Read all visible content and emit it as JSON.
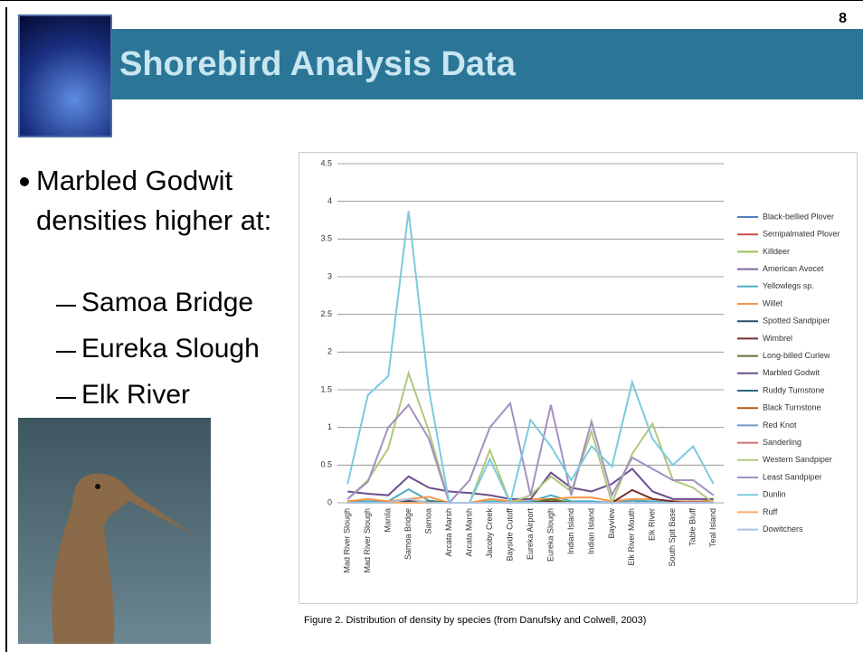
{
  "slide": {
    "page_number": "8",
    "title": "Shorebird Analysis Data",
    "bullet": "Marbled Godwit densities higher at:",
    "sub_bullets": [
      "Samoa Bridge",
      "Eureka Slough",
      "Elk River"
    ],
    "caption": "Figure 2. Distribution of density by species (from Danufsky and Colwell, 2003)"
  },
  "chart_data": {
    "type": "line",
    "categories": [
      "Mad River Slough",
      "Mad River Slough",
      "Manila",
      "Samoa Bridge",
      "Samoa",
      "Arcata Marsh",
      "Arcata Marsh",
      "Jacoby Creek",
      "Bayside Cutoff",
      "Eureka Airport",
      "Eureka Slough",
      "Indian Island",
      "Indian Island",
      "Bayview",
      "Elk River Mouth",
      "Elk River",
      "South Spit Base",
      "Table Bluff",
      "Teal Island"
    ],
    "ylim": [
      0,
      4.5
    ],
    "yticks": [
      0,
      0.5,
      1,
      1.5,
      2,
      2.5,
      3,
      3.5,
      4,
      4.5
    ],
    "grid": true,
    "legend": "right",
    "series": [
      {
        "name": "Black-bellied Plover",
        "color": "#4f81bd",
        "values": [
          0,
          0,
          0,
          0.05,
          0,
          0,
          0,
          0,
          0,
          0,
          0.02,
          0,
          0,
          0,
          0.03,
          0,
          0,
          0,
          0
        ]
      },
      {
        "name": "Semipalmated Plover",
        "color": "#c0504d",
        "values": [
          0,
          0.02,
          0,
          0.03,
          0,
          0,
          0,
          0,
          0,
          0,
          0,
          0,
          0,
          0,
          0,
          0,
          0,
          0,
          0
        ]
      },
      {
        "name": "Killdeer",
        "color": "#9bbb59",
        "values": [
          0,
          0,
          0,
          0,
          0,
          0,
          0,
          0,
          0,
          0,
          0,
          0,
          0,
          0,
          0,
          0,
          0,
          0,
          0.05
        ]
      },
      {
        "name": "American Avocet",
        "color": "#8064a2",
        "values": [
          0.02,
          0,
          0,
          0,
          0,
          0,
          0,
          0,
          0,
          0,
          0,
          0,
          0,
          0,
          0,
          0,
          0,
          0,
          0
        ]
      },
      {
        "name": "Yellowlegs sp.",
        "color": "#4bacc6",
        "values": [
          0.02,
          0.02,
          0.02,
          0.18,
          0.03,
          0,
          0,
          0.02,
          0,
          0.02,
          0.1,
          0.02,
          0.02,
          0,
          0.03,
          0.02,
          0,
          0,
          0
        ]
      },
      {
        "name": "Willet",
        "color": "#f79646",
        "values": [
          0.02,
          0.05,
          0.02,
          0.05,
          0.08,
          0,
          0,
          0.05,
          0.02,
          0.05,
          0.05,
          0.07,
          0.07,
          0.02,
          0.05,
          0.05,
          0.02,
          0.02,
          0.02
        ]
      },
      {
        "name": "Spotted Sandpiper",
        "color": "#2c4d75",
        "values": [
          0,
          0,
          0,
          0.02,
          0,
          0,
          0,
          0,
          0,
          0,
          0,
          0,
          0,
          0,
          0,
          0,
          0,
          0,
          0
        ]
      },
      {
        "name": "Wimbrel",
        "color": "#772c2a",
        "values": [
          0,
          0,
          0,
          0,
          0,
          0,
          0,
          0,
          0,
          0,
          0.02,
          0,
          0,
          0,
          0.17,
          0.05,
          0.02,
          0,
          0
        ]
      },
      {
        "name": "Long-billed Curlew",
        "color": "#5f7530",
        "values": [
          0,
          0,
          0,
          0,
          0.02,
          0,
          0,
          0,
          0,
          0,
          0.05,
          0,
          0,
          0,
          0,
          0,
          0,
          0,
          0
        ]
      },
      {
        "name": "Marbled Godwit",
        "color": "#6b4f8e",
        "values": [
          0.15,
          0.12,
          0.1,
          0.35,
          0.2,
          0.15,
          0.13,
          0.1,
          0.05,
          0.05,
          0.4,
          0.2,
          0.15,
          0.25,
          0.45,
          0.15,
          0.05,
          0.05,
          0.05
        ]
      },
      {
        "name": "Ruddy Turnstone",
        "color": "#276a7c",
        "values": [
          0,
          0,
          0,
          0,
          0,
          0,
          0,
          0,
          0,
          0,
          0,
          0,
          0,
          0,
          0,
          0,
          0,
          0,
          0
        ]
      },
      {
        "name": "Black Turnstone",
        "color": "#b65708",
        "values": [
          0,
          0,
          0,
          0,
          0,
          0,
          0,
          0,
          0,
          0,
          0,
          0,
          0,
          0,
          0,
          0,
          0,
          0,
          0
        ]
      },
      {
        "name": "Red Knot",
        "color": "#729aca",
        "values": [
          0,
          0,
          0,
          0,
          0,
          0,
          0,
          0,
          0,
          0,
          0,
          0,
          0,
          0,
          0,
          0,
          0,
          0,
          0
        ]
      },
      {
        "name": "Sanderling",
        "color": "#cd7371",
        "values": [
          0,
          0,
          0,
          0,
          0,
          0,
          0,
          0,
          0,
          0,
          0,
          0,
          0,
          0,
          0,
          0,
          0,
          0.02,
          0
        ]
      },
      {
        "name": "Western Sandpiper",
        "color": "#afc97a",
        "values": [
          0.05,
          0.3,
          0.72,
          1.72,
          0.95,
          0,
          0,
          0.7,
          0,
          0.1,
          0.35,
          0.15,
          0.95,
          0,
          0.65,
          1.05,
          0.3,
          0.2,
          0
        ]
      },
      {
        "name": "Least Sandpiper",
        "color": "#a490c0",
        "values": [
          0.05,
          0.28,
          1,
          1.3,
          0.85,
          0,
          0.3,
          1,
          1.32,
          0.1,
          1.3,
          0.1,
          1.08,
          0.1,
          0.6,
          0.45,
          0.3,
          0.3,
          0.1
        ]
      },
      {
        "name": "Dunlin",
        "color": "#7ccadf",
        "values": [
          0.25,
          1.43,
          1.68,
          3.87,
          1.5,
          0,
          0,
          0.58,
          0,
          1.1,
          0.75,
          0.3,
          0.75,
          0.48,
          1.6,
          0.85,
          0.5,
          0.75,
          0.25
        ]
      },
      {
        "name": "Ruff",
        "color": "#f9ab6b",
        "values": [
          0,
          0,
          0,
          0,
          0,
          0,
          0,
          0,
          0,
          0,
          0,
          0,
          0,
          0,
          0,
          0,
          0,
          0,
          0
        ]
      },
      {
        "name": "Dowitchers",
        "color": "#a9c2e0",
        "values": [
          0,
          0,
          0,
          0.05,
          0,
          0,
          0,
          0,
          0,
          0,
          0,
          0,
          0,
          0,
          0,
          0,
          0,
          0,
          0
        ]
      }
    ]
  }
}
